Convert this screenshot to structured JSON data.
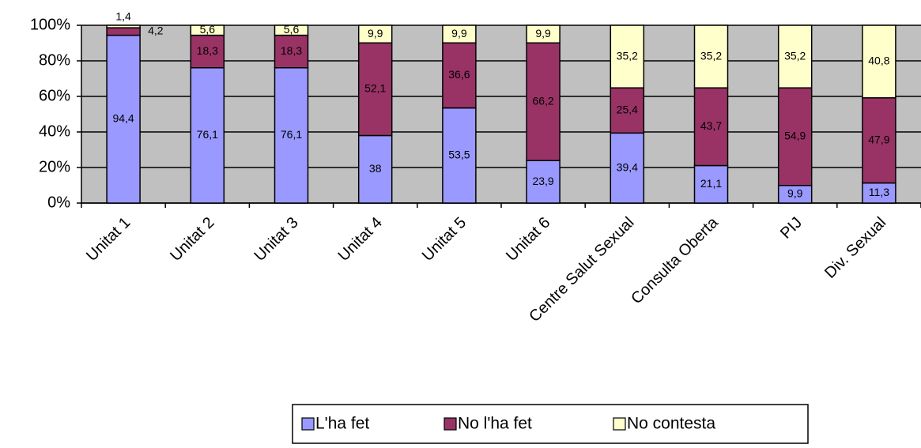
{
  "chart_data": {
    "type": "stacked_bar",
    "categories": [
      "Unitat 1",
      "Unitat 2",
      "Unitat 3",
      "Unitat 4",
      "Unitat 5",
      "Unitat 6",
      "Centre Salut Sexual",
      "Consulta Oberta",
      "PIJ",
      "Div. Sexual"
    ],
    "series": [
      {
        "name": "L'ha fet",
        "color": "#9999ff",
        "values": [
          94.4,
          76.1,
          76.1,
          38,
          53.5,
          23.9,
          39.4,
          21.1,
          9.9,
          11.3
        ],
        "value_labels": [
          "94,4",
          "76,1",
          "76,1",
          "38",
          "53,5",
          "23,9",
          "39,4",
          "21,1",
          "9,9",
          "11,3"
        ]
      },
      {
        "name": "No l'ha fet",
        "color": "#993366",
        "values": [
          4.2,
          18.3,
          18.3,
          52.1,
          36.6,
          66.2,
          25.4,
          43.7,
          54.9,
          47.9
        ],
        "value_labels": [
          "4,2",
          "18,3",
          "18,3",
          "52,1",
          "36,6",
          "66,2",
          "25,4",
          "43,7",
          "54,9",
          "47,9"
        ]
      },
      {
        "name": "No contesta",
        "color": "#ffffcc",
        "values": [
          1.4,
          5.6,
          5.6,
          9.9,
          9.9,
          9.9,
          35.2,
          35.2,
          35.2,
          40.8
        ],
        "value_labels": [
          "1,4",
          "5,6",
          "5,6",
          "9,9",
          "9,9",
          "9,9",
          "35,2",
          "35,2",
          "35,2",
          "40,8"
        ]
      }
    ],
    "ylim": [
      0,
      100
    ],
    "yticks": [
      {
        "value": 0,
        "label": "0%"
      },
      {
        "value": 20,
        "label": "20%"
      },
      {
        "value": 40,
        "label": "40%"
      },
      {
        "value": 60,
        "label": "60%"
      },
      {
        "value": 80,
        "label": "80%"
      },
      {
        "value": 100,
        "label": "100%"
      }
    ],
    "grid": true,
    "plot_background": "#c0c0c0",
    "legend": "bottom"
  }
}
